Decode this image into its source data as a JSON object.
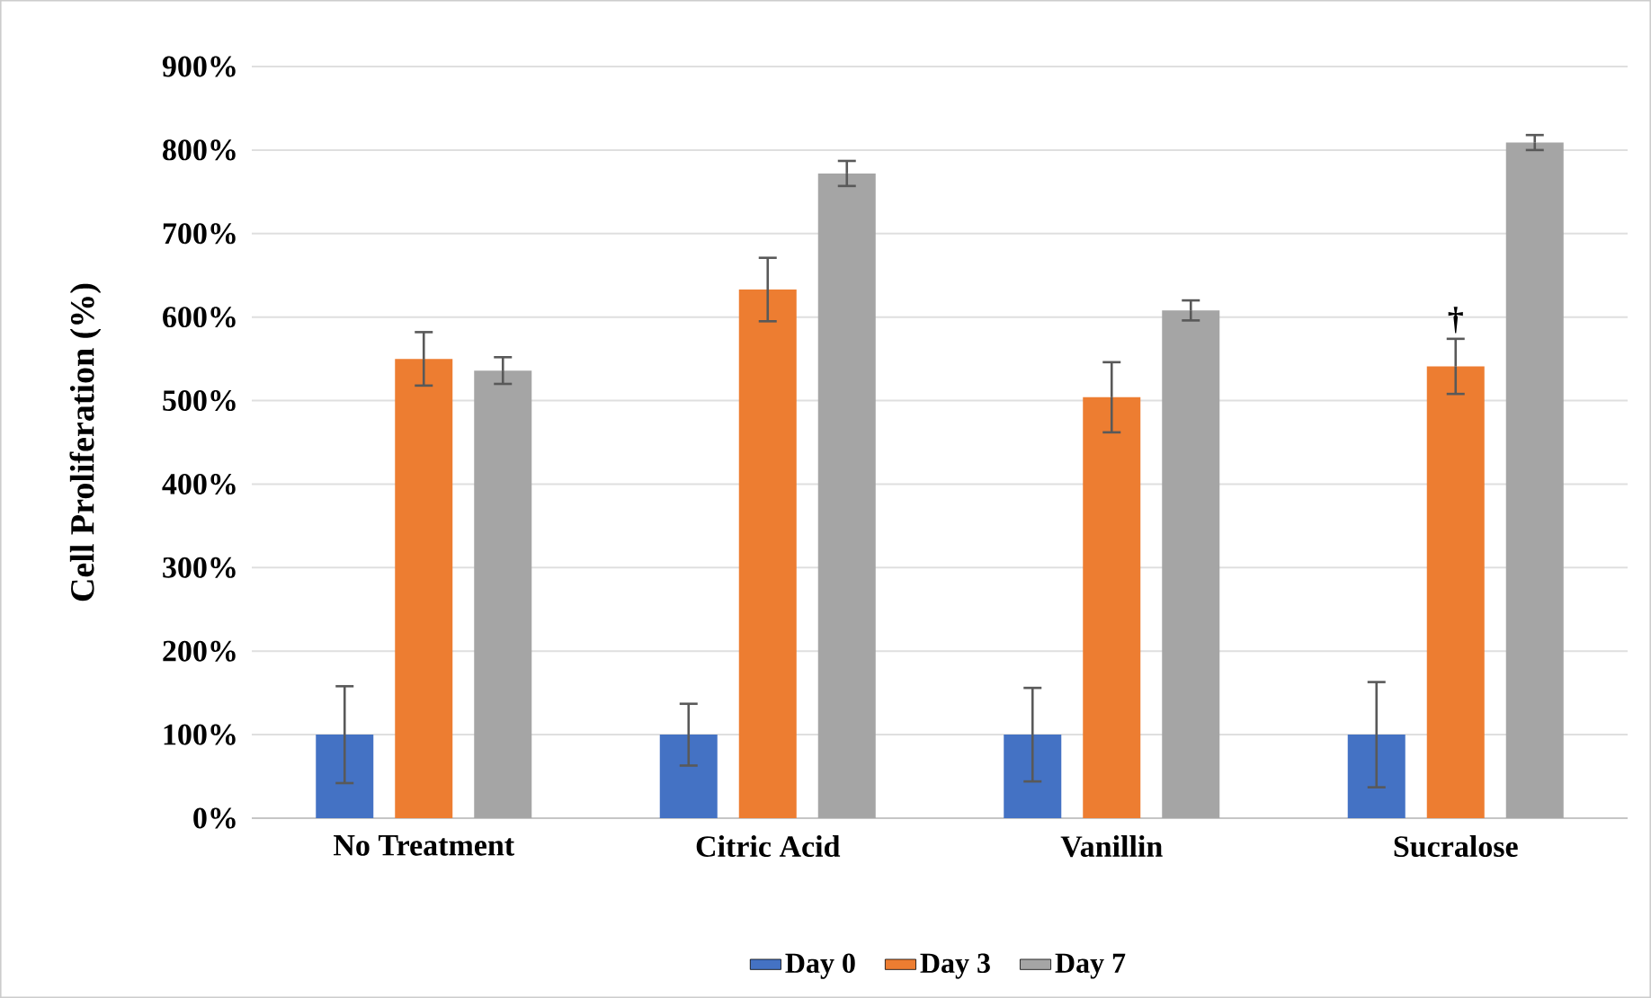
{
  "chart_data": {
    "type": "bar",
    "ylabel": "Cell Proliferation (%)",
    "categories": [
      "No Treatment",
      "Citric Acid",
      "Vanillin",
      "Sucralose"
    ],
    "series": [
      {
        "name": "Day 0",
        "color": "#4472c4",
        "values": [
          100,
          100,
          100,
          100
        ],
        "errors": [
          58,
          37,
          56,
          63
        ]
      },
      {
        "name": "Day 3",
        "color": "#ed7d31",
        "values": [
          550,
          633,
          504,
          541
        ],
        "errors": [
          32,
          38,
          42,
          33
        ]
      },
      {
        "name": "Day 7",
        "color": "#a5a5a5",
        "values": [
          536,
          772,
          608,
          809
        ],
        "errors": [
          16,
          15,
          12,
          9
        ]
      }
    ],
    "ylim": [
      0,
      900
    ],
    "yticks": [
      {
        "value": 0,
        "label": "0%"
      },
      {
        "value": 100,
        "label": "100%"
      },
      {
        "value": 200,
        "label": "200%"
      },
      {
        "value": 300,
        "label": "300%"
      },
      {
        "value": 400,
        "label": "400%"
      },
      {
        "value": 500,
        "label": "500%"
      },
      {
        "value": 600,
        "label": "600%"
      },
      {
        "value": 700,
        "label": "700%"
      },
      {
        "value": 800,
        "label": "800%"
      },
      {
        "value": 900,
        "label": "900%"
      }
    ],
    "annotations": [
      {
        "text": "†",
        "x": "Sucralose",
        "y": 541
      }
    ],
    "grid": "y",
    "legend": "bottom"
  }
}
